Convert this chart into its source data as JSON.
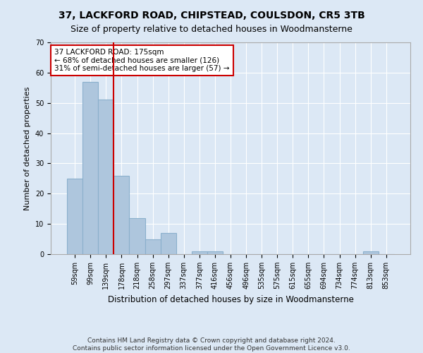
{
  "title1": "37, LACKFORD ROAD, CHIPSTEAD, COULSDON, CR5 3TB",
  "title2": "Size of property relative to detached houses in Woodmansterne",
  "xlabel": "Distribution of detached houses by size in Woodmansterne",
  "ylabel": "Number of detached properties",
  "footnote1": "Contains HM Land Registry data © Crown copyright and database right 2024.",
  "footnote2": "Contains public sector information licensed under the Open Government Licence v3.0.",
  "categories": [
    "59sqm",
    "99sqm",
    "139sqm",
    "178sqm",
    "218sqm",
    "258sqm",
    "297sqm",
    "337sqm",
    "377sqm",
    "416sqm",
    "456sqm",
    "496sqm",
    "535sqm",
    "575sqm",
    "615sqm",
    "655sqm",
    "694sqm",
    "734sqm",
    "774sqm",
    "813sqm",
    "853sqm"
  ],
  "values": [
    25,
    57,
    51,
    26,
    12,
    5,
    7,
    0,
    1,
    1,
    0,
    0,
    0,
    0,
    0,
    0,
    0,
    0,
    0,
    1,
    0
  ],
  "bar_color": "#aec6dd",
  "bar_edge_color": "#8ab0cc",
  "ylim": [
    0,
    70
  ],
  "yticks": [
    0,
    10,
    20,
    30,
    40,
    50,
    60,
    70
  ],
  "ref_line_x": 2.5,
  "ref_line_color": "#cc0000",
  "annotation_text": "37 LACKFORD ROAD: 175sqm\n← 68% of detached houses are smaller (126)\n31% of semi-detached houses are larger (57) →",
  "annotation_box_color": "#ffffff",
  "annotation_box_edge_color": "#cc0000",
  "bg_color": "#dce8f5",
  "grid_color": "#ffffff",
  "title1_fontsize": 10,
  "title2_fontsize": 9,
  "ylabel_fontsize": 8,
  "xlabel_fontsize": 8.5,
  "tick_fontsize": 7,
  "annot_fontsize": 7.5,
  "footnote_fontsize": 6.5
}
